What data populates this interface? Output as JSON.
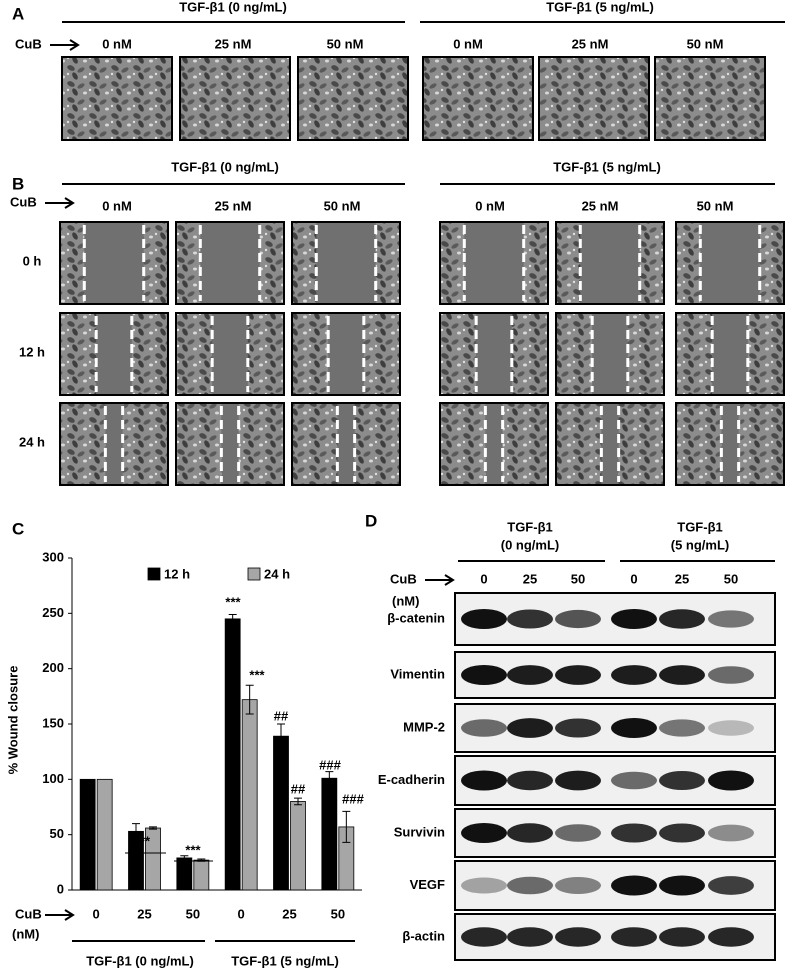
{
  "panel_a": {
    "label": "A",
    "groups": [
      "TGF-β1 (0 ng/mL)",
      "TGF-β1 (5 ng/mL)"
    ],
    "treatment": "CuB",
    "doses": [
      "0 nM",
      "25 nM",
      "50 nM",
      "0 nM",
      "25 nM",
      "50 nM"
    ]
  },
  "panel_b": {
    "label": "B",
    "groups": [
      "TGF-β1 (0 ng/mL)",
      "TGF-β1 (5 ng/mL)"
    ],
    "treatment": "CuB",
    "doses": [
      "0 nM",
      "25 nM",
      "50 nM",
      "0 nM",
      "25 nM",
      "50 nM"
    ],
    "times": [
      "0 h",
      "12 h",
      "24 h"
    ]
  },
  "chart_data": {
    "type": "bar",
    "label": "C",
    "ylabel": "% Wound closure",
    "treatment": "CuB",
    "unit": "(nM)",
    "categories": [
      "0",
      "25",
      "50",
      "0",
      "25",
      "50"
    ],
    "groups": [
      "TGF-β1 (0 ng/mL)",
      "TGF-β1 (5 ng/mL)"
    ],
    "series": [
      {
        "name": "12 h",
        "color": "#000000",
        "values": [
          100,
          53,
          29,
          245,
          139,
          101
        ],
        "errors": [
          0,
          7,
          2,
          4,
          11,
          6
        ]
      },
      {
        "name": "24 h",
        "color": "#a6a6a6",
        "values": [
          100,
          56,
          27,
          172,
          80,
          57
        ],
        "errors": [
          0,
          1,
          1,
          13,
          3,
          14
        ]
      }
    ],
    "annotations": [
      "**",
      "***",
      "***",
      "***",
      "##",
      "##",
      "###",
      "###"
    ],
    "ylim": [
      0,
      300
    ],
    "yticks": [
      0,
      50,
      100,
      150,
      200,
      250,
      300
    ]
  },
  "panel_d": {
    "label": "D",
    "groups": [
      [
        "TGF-β1",
        "(0 ng/mL)"
      ],
      [
        "TGF-β1",
        "(5 ng/mL)"
      ]
    ],
    "treatment": "CuB",
    "unit": "(nM)",
    "doses": [
      "0",
      "25",
      "50",
      "0",
      "25",
      "50"
    ],
    "proteins": [
      "β-catenin",
      "Vimentin",
      "MMP-2",
      "E-cadherin",
      "Survivin",
      "VEGF",
      "β-actin"
    ]
  }
}
